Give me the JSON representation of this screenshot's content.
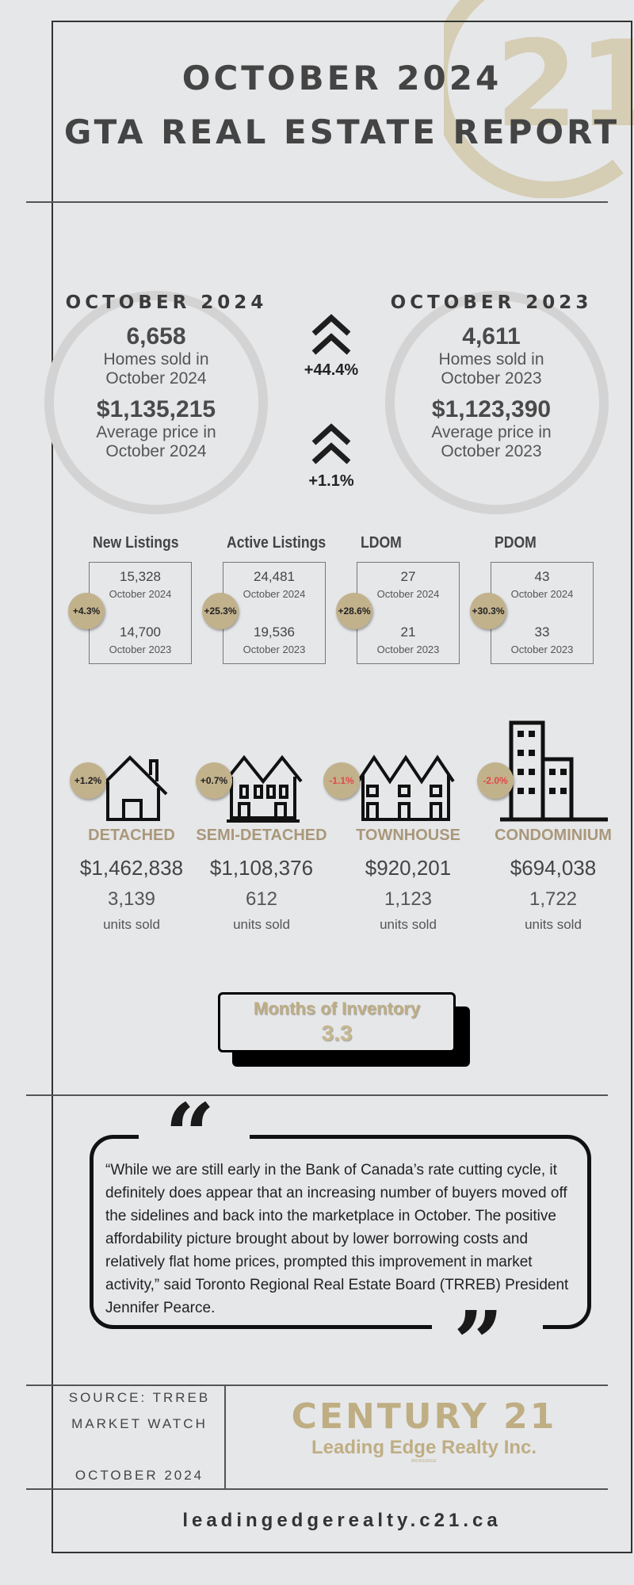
{
  "header": {
    "line1": "OCTOBER 2024",
    "line2": "GTA REAL ESTATE REPORT",
    "watermark": "21"
  },
  "comparison": {
    "current": {
      "heading": "OCTOBER 2024",
      "homes_sold": "6,658",
      "homes_label_1": "Homes sold in",
      "homes_label_2": "October 2024",
      "avg_price": "$1,135,215",
      "price_label_1": "Average price in",
      "price_label_2": "October 2024"
    },
    "previous": {
      "heading": "OCTOBER 2023",
      "homes_sold": "4,611",
      "homes_label_1": "Homes sold in",
      "homes_label_2": "October 2023",
      "avg_price": "$1,123,390",
      "price_label_1": "Average price in",
      "price_label_2": "October 2023"
    },
    "sales_change": "+44.4%",
    "price_change": "+1.1%"
  },
  "listings": [
    {
      "title": "New Listings",
      "v2024": "15,328",
      "l2024": "October 2024",
      "v2023": "14,700",
      "l2023": "October 2023",
      "change": "+4.3%"
    },
    {
      "title": "Active Listings",
      "v2024": "24,481",
      "l2024": "October 2024",
      "v2023": "19,536",
      "l2023": "October 2023",
      "change": "+25.3%"
    },
    {
      "title": "LDOM",
      "v2024": "27",
      "l2024": "October 2024",
      "v2023": "21",
      "l2023": "October 2023",
      "change": "+28.6%"
    },
    {
      "title": "PDOM",
      "v2024": "43",
      "l2024": "October 2024",
      "v2023": "33",
      "l2023": "October 2023",
      "change": "+30.3%"
    }
  ],
  "property_types": [
    {
      "name": "DETACHED",
      "price": "$1,462,838",
      "units": "3,139",
      "units_label": "units sold",
      "change": "+1.2%"
    },
    {
      "name": "SEMI-DETACHED",
      "price": "$1,108,376",
      "units": "612",
      "units_label": "units sold",
      "change": "+0.7%"
    },
    {
      "name": "TOWNHOUSE",
      "price": "$920,201",
      "units": "1,123",
      "units_label": "units sold",
      "change": "-1.1%"
    },
    {
      "name": "CONDOMINIUM",
      "price": "$694,038",
      "units": "1,722",
      "units_label": "units sold",
      "change": "-2.0%"
    }
  ],
  "inventory": {
    "label": "Months of Inventory",
    "value": "3.3"
  },
  "quote": {
    "text": "“While we are still early in the Bank of Canada’s rate cutting cycle, it definitely does appear that an increasing number of buyers moved off the sidelines and back into the marketplace in October. The positive affordability picture brought about by lower borrowing costs and relatively flat home prices, prompted this improvement in market activity,” said Toronto Regional Real Estate Board (TRREB) President Jennifer Pearce."
  },
  "footer": {
    "source_1": "SOURCE: TRREB",
    "source_2": "MARKET WATCH",
    "date": "OCTOBER 2024",
    "brand": "CENTURY 21",
    "brand_sub": "Leading Edge Realty Inc.",
    "brand_small": "BROKERAGE",
    "url": "leadingedgerealty.c21.ca"
  },
  "colors": {
    "gold": "#c2b28c",
    "text": "#444444",
    "negative": "#e04848"
  }
}
